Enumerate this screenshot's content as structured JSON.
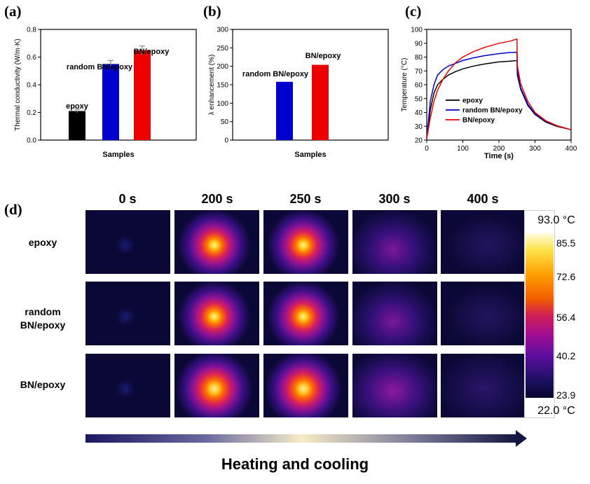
{
  "panels": {
    "a": "(a)",
    "b": "(b)",
    "c": "(c)",
    "d": "(d)"
  },
  "chart_data": [
    {
      "id": "a",
      "type": "bar",
      "title": "",
      "xlabel": "Samples",
      "ylabel": "Thermal conductivity (W/m·K)",
      "ylim": [
        0,
        0.8
      ],
      "yticks": [
        "0.0",
        "0.2",
        "0.4",
        "0.6",
        "0.8"
      ],
      "categories": [
        "epoxy",
        "random BN/epoxy",
        "BN/epoxy"
      ],
      "values": [
        0.21,
        0.55,
        0.65
      ],
      "errors": [
        0.012,
        0.025,
        0.03
      ],
      "colors": [
        "#000000",
        "#0000cc",
        "#ee0000"
      ]
    },
    {
      "id": "b",
      "type": "bar",
      "title": "",
      "xlabel": "Samples",
      "ylabel": "λ enhancement (%)",
      "ylim": [
        0,
        300
      ],
      "yticks": [
        "0",
        "50",
        "100",
        "150",
        "200",
        "250",
        "300"
      ],
      "categories": [
        "random BN/epoxy",
        "BN/epoxy"
      ],
      "values": [
        158,
        204
      ],
      "colors": [
        "#0000cc",
        "#ee0000"
      ]
    },
    {
      "id": "c",
      "type": "line",
      "title": "",
      "xlabel": "Time (s)",
      "ylabel": "Temperature (°C)",
      "xlim": [
        0,
        400
      ],
      "ylim": [
        20,
        100
      ],
      "xticks": [
        "0",
        "100",
        "200",
        "300",
        "400"
      ],
      "yticks": [
        "20",
        "30",
        "40",
        "50",
        "60",
        "70",
        "80",
        "90",
        "100"
      ],
      "series": [
        {
          "name": "epoxy",
          "color": "#000000",
          "x": [
            0,
            10,
            20,
            30,
            45,
            60,
            80,
            100,
            130,
            160,
            200,
            230,
            250,
            251,
            260,
            280,
            300,
            330,
            360,
            400
          ],
          "y": [
            21,
            42,
            54,
            60,
            64,
            67,
            69.5,
            71.5,
            73.5,
            75,
            76.5,
            77,
            77.5,
            67,
            57,
            45,
            38.5,
            33,
            30,
            27.5
          ]
        },
        {
          "name": "random BN/epoxy",
          "color": "#0000cc",
          "x": [
            0,
            5,
            10,
            20,
            30,
            45,
            60,
            80,
            100,
            130,
            160,
            200,
            230,
            250,
            251,
            260,
            280,
            300,
            330,
            360,
            400
          ],
          "y": [
            21,
            35,
            48,
            60,
            67,
            71,
            73.5,
            75.5,
            77.5,
            79.5,
            81,
            82.5,
            83.3,
            83.5,
            70,
            58,
            46,
            39,
            33.5,
            30.5,
            27.5
          ]
        },
        {
          "name": "BN/epoxy",
          "color": "#ee0000",
          "x": [
            0,
            10,
            20,
            30,
            45,
            60,
            80,
            100,
            130,
            160,
            200,
            230,
            250,
            251,
            260,
            280,
            300,
            330,
            360,
            400
          ],
          "y": [
            21,
            36,
            48,
            56,
            64,
            70,
            76,
            80,
            84,
            87,
            90,
            91.5,
            93,
            74,
            61,
            48,
            40,
            34,
            30.5,
            27.5
          ]
        }
      ]
    }
  ],
  "thermal": {
    "time_labels": [
      "0 s",
      "200 s",
      "250 s",
      "300 s",
      "400 s"
    ],
    "sample_labels": [
      {
        "line1": "epoxy",
        "line2": ""
      },
      {
        "line1": "random",
        "line2": "BN/epoxy"
      },
      {
        "line1": "BN/epoxy",
        "line2": ""
      }
    ],
    "colorbar": {
      "max_label": "93.0 °C",
      "min_label": "22.0 °C",
      "ticks": [
        "85.5",
        "72.6",
        "56.4",
        "40.2",
        "23.9"
      ]
    },
    "footer_label": "Heating and cooling"
  }
}
